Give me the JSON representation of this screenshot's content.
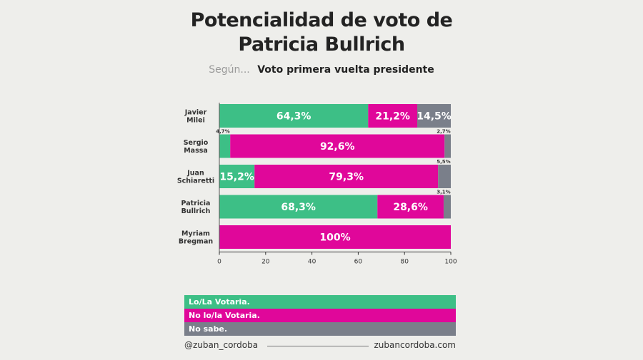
{
  "title_line1": "Potencialidad de voto de",
  "title_line2": "Patricia Bullrich",
  "subtitle_prefix": "Según...",
  "subtitle_main": "Voto primera vuelta presidente",
  "colors": {
    "green": "#3dbf86",
    "magenta": "#e0079a",
    "gray": "#7a7f8a",
    "background": "#eeeeeb"
  },
  "legend": [
    {
      "label": "Lo/La Votaria.",
      "color": "#3dbf86"
    },
    {
      "label": "No lo/la Votaria.",
      "color": "#e0079a"
    },
    {
      "label": "No sabe.",
      "color": "#7a7f8a"
    }
  ],
  "footer": {
    "left": "@zuban_cordoba",
    "right": "zubancordoba.com"
  },
  "chart_data": {
    "type": "bar",
    "orientation": "horizontal",
    "stacked": true,
    "categories": [
      [
        "Javier",
        "Milei"
      ],
      [
        "Sergio",
        "Massa"
      ],
      [
        "Juan",
        "Schiaretti"
      ],
      [
        "Patricia",
        "Bullrich"
      ],
      [
        "Myriam",
        "Bregman"
      ]
    ],
    "series": [
      {
        "name": "Lo/La Votaria.",
        "color": "#3dbf86",
        "values": [
          64.3,
          4.7,
          15.2,
          68.3,
          0
        ],
        "labels": [
          "64,3%",
          "4,7%",
          "15,2%",
          "68,3%",
          ""
        ]
      },
      {
        "name": "No lo/la Votaria.",
        "color": "#e0079a",
        "values": [
          21.2,
          92.6,
          79.3,
          28.6,
          100
        ],
        "labels": [
          "21,2%",
          "92,6%",
          "79,3%",
          "28,6%",
          "100%"
        ]
      },
      {
        "name": "No sabe.",
        "color": "#7a7f8a",
        "values": [
          14.5,
          2.7,
          5.5,
          3.1,
          0
        ],
        "labels": [
          "14,5%",
          "2,7%",
          "5,5%",
          "3,1%",
          ""
        ]
      }
    ],
    "xlim": [
      0,
      100
    ],
    "xticks": [
      0,
      20,
      40,
      60,
      80,
      100
    ],
    "grid": false,
    "legend_position": "bottom"
  }
}
